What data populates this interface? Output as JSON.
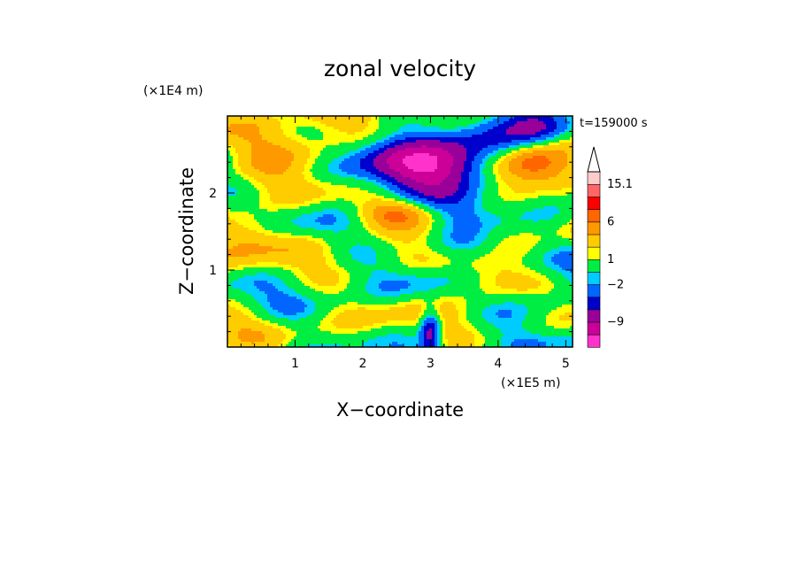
{
  "chart_data": {
    "type": "heatmap",
    "title": "zonal velocity",
    "xlabel": "X−coordinate",
    "ylabel": "Z−coordinate",
    "x_unit_label": "(×1E5 m)",
    "y_unit_label": "(×1E4 m)",
    "time_label": "t=159000 s",
    "xlim": [
      0,
      5.1
    ],
    "ylim": [
      0,
      3.0
    ],
    "xticks": [
      {
        "value": 1,
        "label": "1"
      },
      {
        "value": 2,
        "label": "2"
      },
      {
        "value": 3,
        "label": "3"
      },
      {
        "value": 4,
        "label": "4"
      },
      {
        "value": 5,
        "label": "5"
      }
    ],
    "yticks": [
      {
        "value": 1,
        "label": "1"
      },
      {
        "value": 2,
        "label": "2"
      }
    ],
    "colorbar": {
      "levels": [
        {
          "color": "#ff33cc"
        },
        {
          "color": "#cc0099"
        },
        {
          "color": "#990099"
        },
        {
          "color": "#0000cc"
        },
        {
          "color": "#0066ff"
        },
        {
          "color": "#00ccff"
        },
        {
          "color": "#00ee44"
        },
        {
          "color": "#ffff00"
        },
        {
          "color": "#ffcc00"
        },
        {
          "color": "#ff9900"
        },
        {
          "color": "#ff6600"
        },
        {
          "color": "#ff0000"
        },
        {
          "color": "#ff6666"
        },
        {
          "color": "#ffcccc"
        }
      ],
      "labels": [
        {
          "boundary": 2,
          "text": "−9"
        },
        {
          "boundary": 5,
          "text": "−2"
        },
        {
          "boundary": 7,
          "text": "1"
        },
        {
          "boundary": 10,
          "text": "6"
        },
        {
          "boundary": 13,
          "text": "15.1"
        }
      ]
    },
    "features": [
      {
        "x": 3.0,
        "z": 2.35,
        "rx": 0.85,
        "rz": 0.3,
        "v": -9
      },
      {
        "x": 3.0,
        "z": 2.35,
        "rx": 1.2,
        "rz": 0.5,
        "v": -5
      },
      {
        "x": 4.6,
        "z": 2.95,
        "rx": 0.5,
        "rz": 0.3,
        "v": -8
      },
      {
        "x": 4.5,
        "z": 2.4,
        "rx": 0.55,
        "rz": 0.3,
        "v": 9
      },
      {
        "x": 1.0,
        "z": 2.6,
        "rx": 0.9,
        "rz": 0.3,
        "v": 5
      },
      {
        "x": 3.5,
        "z": 1.3,
        "rx": 0.7,
        "rz": 0.2,
        "v": -4
      },
      {
        "x": 1.5,
        "z": 0.6,
        "rx": 0.6,
        "rz": 0.4,
        "v": -0.5
      },
      {
        "x": 3.0,
        "z": 0.2,
        "rx": 0.15,
        "rz": 0.3,
        "v": -8
      },
      {
        "x": 4.6,
        "z": 0.55,
        "rx": 0.6,
        "rz": 0.25,
        "v": -3
      },
      {
        "x": 0.3,
        "z": 1.5,
        "rx": 0.5,
        "rz": 0.3,
        "v": 4
      },
      {
        "x": 2.5,
        "z": 1.75,
        "rx": 0.6,
        "rz": 0.2,
        "v": 6
      },
      {
        "x": 3.8,
        "z": 0.9,
        "rx": 0.5,
        "rz": 0.3,
        "v": 3
      }
    ]
  }
}
